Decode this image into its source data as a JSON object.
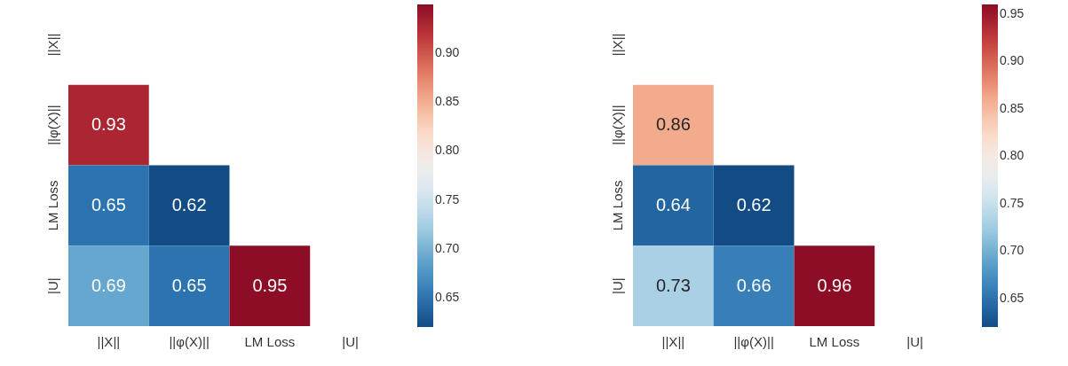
{
  "chart_data": [
    {
      "type": "heatmap",
      "categories": [
        "||X||",
        "||φ(X)||",
        "LM Loss",
        "|U|"
      ],
      "y_categories": [
        "||X||",
        "||φ(X)||",
        "LM Loss",
        "|U|"
      ],
      "cells": [
        [
          null,
          null,
          null,
          null
        ],
        [
          0.93,
          null,
          null,
          null
        ],
        [
          0.65,
          0.62,
          null,
          null
        ],
        [
          0.69,
          0.65,
          0.95,
          null
        ]
      ],
      "clim": [
        0.62,
        0.95
      ],
      "cticks": [
        0.65,
        {
          "value": 0.7,
          "label": "0.70"
        },
        0.75,
        {
          "value": 0.8,
          "label": "0.80"
        },
        0.85,
        {
          "value": 0.9,
          "label": "0.90"
        }
      ],
      "data_labels": true
    },
    {
      "type": "heatmap",
      "categories": [
        "||X||",
        "||φ(X)||",
        "LM Loss",
        "|U|"
      ],
      "y_categories": [
        "||X||",
        "||φ(X)||",
        "LM Loss",
        "|U|"
      ],
      "cells": [
        [
          null,
          null,
          null,
          null
        ],
        [
          0.86,
          null,
          null,
          null
        ],
        [
          0.64,
          0.62,
          null,
          null
        ],
        [
          0.73,
          0.66,
          0.96,
          null
        ]
      ],
      "clim": [
        0.62,
        0.96
      ],
      "cticks": [
        0.65,
        {
          "value": 0.7,
          "label": "0.70"
        },
        0.75,
        {
          "value": 0.8,
          "label": "0.80"
        },
        0.85,
        {
          "value": 0.9,
          "label": "0.90"
        },
        0.95
      ],
      "data_labels": true
    }
  ]
}
